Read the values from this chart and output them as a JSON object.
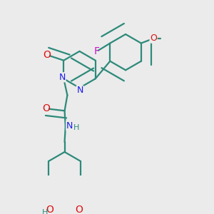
{
  "background_color": "#ebebeb",
  "bond_color": "#2d8a7a",
  "bond_width": 1.6,
  "atom_colors": {
    "N": "#1a1aee",
    "O": "#dd1111",
    "F": "#cc11cc",
    "C": "#2d8a7a",
    "H": "#2d8a7a"
  },
  "font_size": 9
}
